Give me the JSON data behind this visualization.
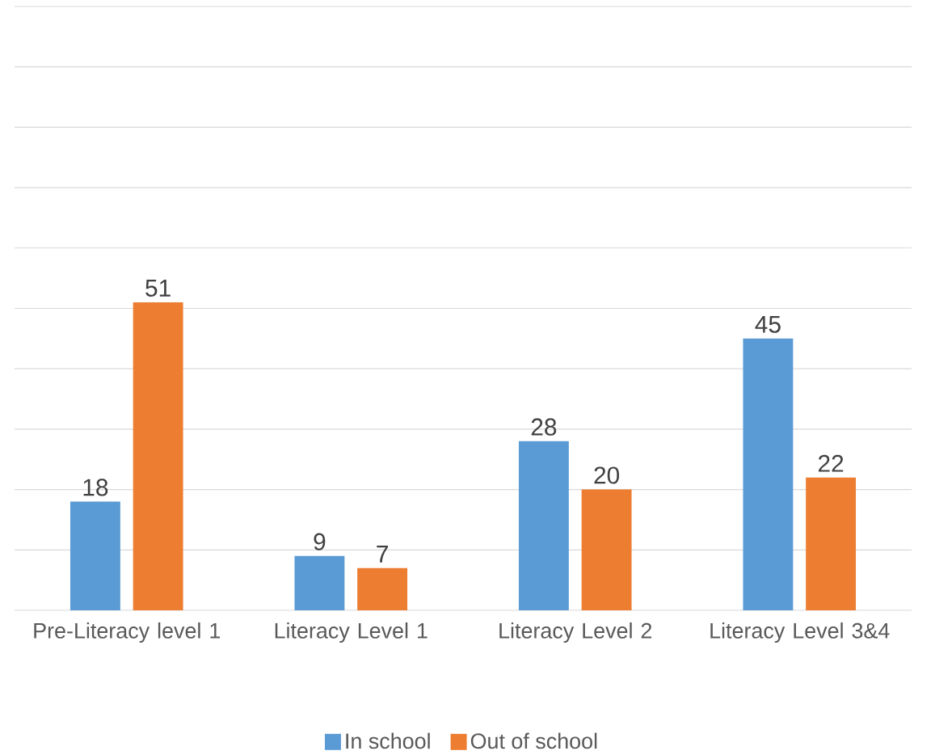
{
  "chart_data": {
    "type": "bar",
    "categories": [
      "Pre-Literacy level 1",
      "Literacy Level 1",
      "Literacy Level 2",
      "Literacy Level 3&4"
    ],
    "series": [
      {
        "name": "In school",
        "color": "#5b9bd5",
        "values": [
          18,
          9,
          28,
          45
        ]
      },
      {
        "name": "Out of school",
        "color": "#ed7d31",
        "values": [
          51,
          7,
          20,
          22
        ]
      }
    ],
    "ylim": [
      0,
      100
    ],
    "yticks": [
      {
        "value": 0,
        "label": null
      },
      {
        "value": 10,
        "label": null
      },
      {
        "value": 20,
        "label": null
      },
      {
        "value": 30,
        "label": null
      },
      {
        "value": 40,
        "label": null
      },
      {
        "value": 50,
        "label": null
      },
      {
        "value": 60,
        "label": null
      },
      {
        "value": 70,
        "label": null
      },
      {
        "value": 80,
        "label": null
      },
      {
        "value": 90,
        "label": null
      },
      {
        "value": 100,
        "label": null
      }
    ],
    "tick_labels": "x",
    "grid": "y",
    "legend": "bottom",
    "data_labels": true
  }
}
